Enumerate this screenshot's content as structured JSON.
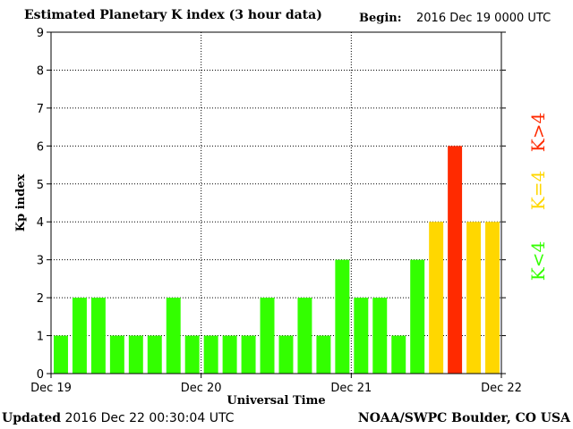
{
  "header": {
    "title": "Estimated Planetary K index (3 hour data)",
    "begin_label": "Begin:",
    "begin_value": "2016 Dec 19 0000 UTC"
  },
  "footer": {
    "updated_label": "Updated",
    "updated_value": "2016 Dec 22 00:30:04 UTC",
    "source": "NOAA/SWPC Boulder, CO USA"
  },
  "colors": {
    "below_4": "#33ff00",
    "equal_4": "#ffd700",
    "above_4": "#ff2a00",
    "grid": "#000000",
    "axis": "#000000"
  },
  "chart_data": {
    "type": "bar",
    "title": "Estimated Planetary K index (3 hour data)",
    "xlabel": "Universal Time",
    "ylabel": "Kp index",
    "ylim": [
      0,
      9
    ],
    "yticks": [
      "0",
      "1",
      "2",
      "3",
      "4",
      "5",
      "6",
      "7",
      "8",
      "9"
    ],
    "xticks": [
      "Dec 19",
      "Dec 20",
      "Dec 21",
      "Dec 22"
    ],
    "grid": true,
    "values": [
      1,
      2,
      2,
      1,
      1,
      1,
      2,
      1,
      1,
      1,
      1,
      2,
      1,
      2,
      1,
      3,
      2,
      2,
      1,
      3,
      4,
      6,
      4,
      4
    ],
    "legend": {
      "placement": "right",
      "entries": [
        {
          "label": "K<4",
          "color": "#33ff00"
        },
        {
          "label": "K=4",
          "color": "#ffd700"
        },
        {
          "label": "K>4",
          "color": "#ff2a00"
        }
      ]
    }
  }
}
